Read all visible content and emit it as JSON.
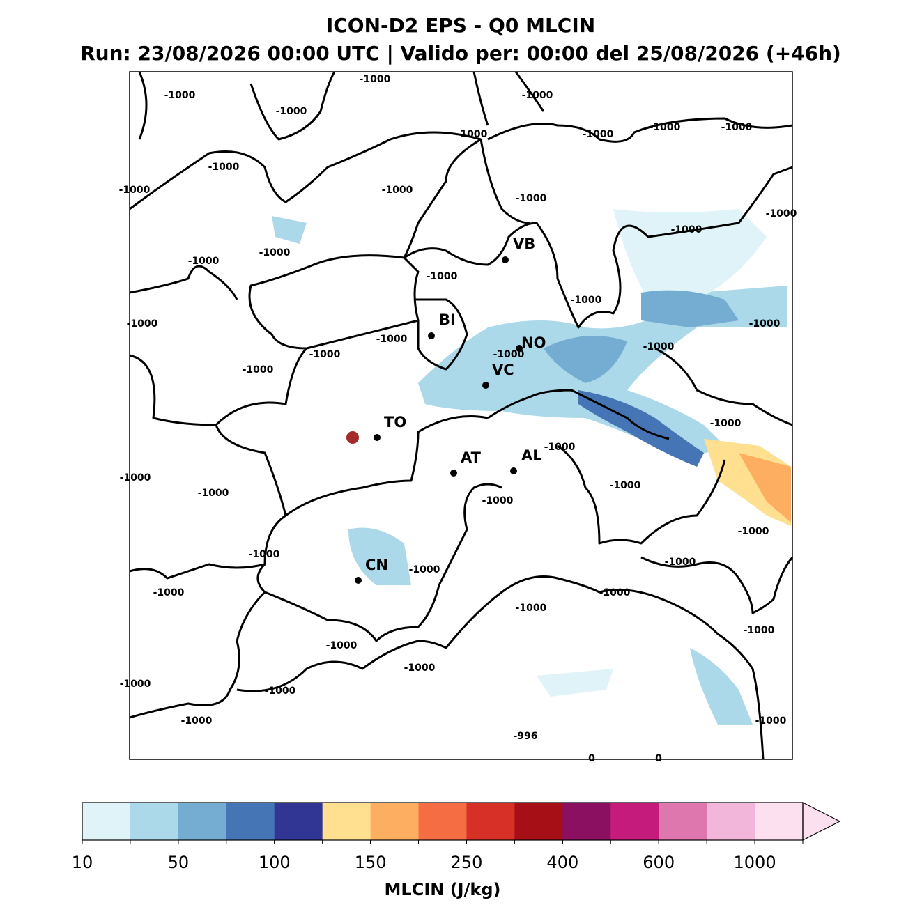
{
  "title": "ICON-D2 EPS - Q0 MLCIN",
  "subtitle": "Run: 23/08/2026 00:00 UTC | Valido per: 00:00 del 25/08/2026 (+46h)",
  "cities": [
    "VB",
    "BI",
    "NO",
    "VC",
    "TO",
    "AT",
    "AL",
    "CN"
  ],
  "contour_labels": [
    -1000,
    -1000,
    -1000,
    -1000,
    -1000,
    -1000,
    -1000,
    -1000,
    -1000,
    -1000,
    -1000,
    -1000,
    -1000,
    -1000,
    -1000,
    -1000,
    -1000,
    -1000,
    -1000,
    -1000,
    -1000,
    -1000,
    -1000,
    -1000,
    -1000,
    -1000,
    -1000,
    -1000,
    -1000,
    -1000,
    -1000,
    -1000,
    -1000,
    -1000,
    -1000,
    -1000,
    -1000,
    -1000,
    -1000,
    -1000,
    -1000,
    -1000,
    -1000,
    -1000,
    -1000,
    -996,
    0,
    0
  ],
  "colorbar": {
    "label": "MLCIN (J/kg)",
    "colors": [
      "#e0f3f8",
      "#abd9e9",
      "#74add1",
      "#4575b4",
      "#313695",
      "#fee090",
      "#fdae61",
      "#f46d43",
      "#d73027",
      "#a50f15",
      "#8c1062",
      "#c51b7d",
      "#de77ae",
      "#f1b6da",
      "#fde0ef"
    ],
    "ticks": [
      10,
      50,
      100,
      150,
      250,
      400,
      600,
      1000
    ]
  }
}
